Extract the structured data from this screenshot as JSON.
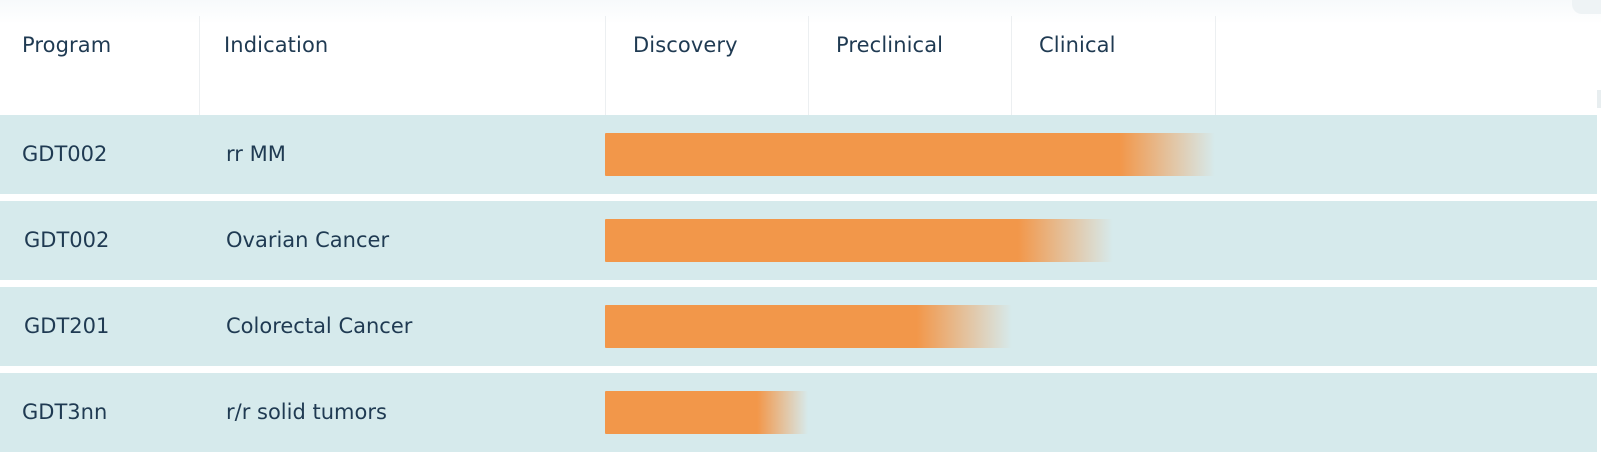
{
  "header": {
    "columns": [
      "Program",
      "Indication",
      "Discovery",
      "Preclinical",
      "Clinical"
    ]
  },
  "chart_data": {
    "type": "bar",
    "orientation": "horizontal",
    "stages": [
      "Discovery",
      "Preclinical",
      "Clinical"
    ],
    "stage_range": [
      0,
      3
    ],
    "rows": [
      {
        "program": "GDT002",
        "indication": "rr MM",
        "progress": 3.0
      },
      {
        "program": "GDT002",
        "indication": "Ovarian Cancer",
        "progress": 2.5
      },
      {
        "program": "GDT201",
        "indication": "Colorectal Cancer",
        "progress": 2.0
      },
      {
        "program": "GDT3nn",
        "indication": "r/r solid tumors",
        "progress": 1.0
      }
    ]
  },
  "colors": {
    "bar": "#f2974a",
    "row_background": "#d6eaec",
    "text": "#1f3a52"
  }
}
